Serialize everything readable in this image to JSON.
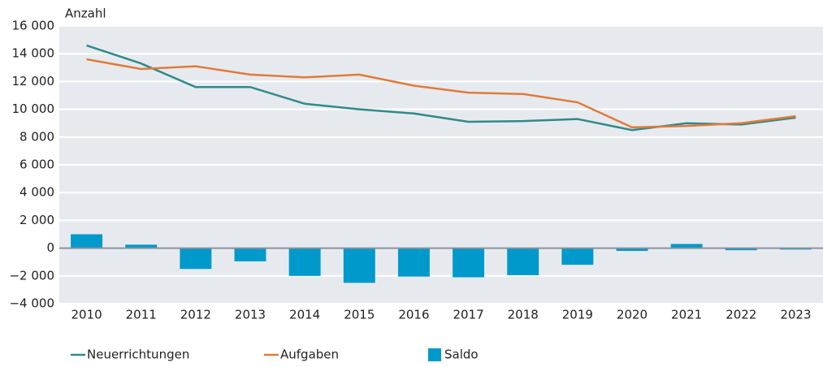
{
  "chart_data": {
    "type": "bar-line",
    "y_label": "Anzahl",
    "categories": [
      "2010",
      "2011",
      "2012",
      "2013",
      "2014",
      "2015",
      "2016",
      "2017",
      "2018",
      "2019",
      "2020",
      "2021",
      "2022",
      "2023"
    ],
    "series": [
      {
        "name": "Neuerrichtungen",
        "type": "line",
        "color": "#2f8a8a",
        "values": [
          14600,
          13300,
          11600,
          11600,
          10400,
          10000,
          9700,
          9100,
          9150,
          9300,
          8500,
          9000,
          8900,
          9400
        ]
      },
      {
        "name": "Aufgaben",
        "type": "line",
        "color": "#e07b39",
        "values": [
          13600,
          12900,
          13100,
          12500,
          12300,
          12500,
          11700,
          11200,
          11100,
          10500,
          8700,
          8800,
          9000,
          9500
        ]
      },
      {
        "name": "Saldo",
        "type": "bar",
        "color": "#0099cc",
        "values": [
          1000,
          250,
          -1500,
          -950,
          -2000,
          -2500,
          -2050,
          -2100,
          -1950,
          -1200,
          -200,
          300,
          -150,
          -100
        ]
      }
    ],
    "ylim": [
      -4000,
      16000
    ],
    "yticks": [
      {
        "value": -4000,
        "label": "−4 000"
      },
      {
        "value": -2000,
        "label": "−2 000"
      },
      0,
      {
        "value": 2000,
        "label": "2 000"
      },
      {
        "value": 4000,
        "label": "4 000"
      },
      {
        "value": 6000,
        "label": "6 000"
      },
      {
        "value": 8000,
        "label": "8 000"
      },
      {
        "value": 10000,
        "label": "10 000"
      },
      {
        "value": 12000,
        "label": "12 000"
      },
      {
        "value": 14000,
        "label": "14 000"
      },
      {
        "value": 16000,
        "label": "16 000"
      }
    ],
    "grid": true
  }
}
